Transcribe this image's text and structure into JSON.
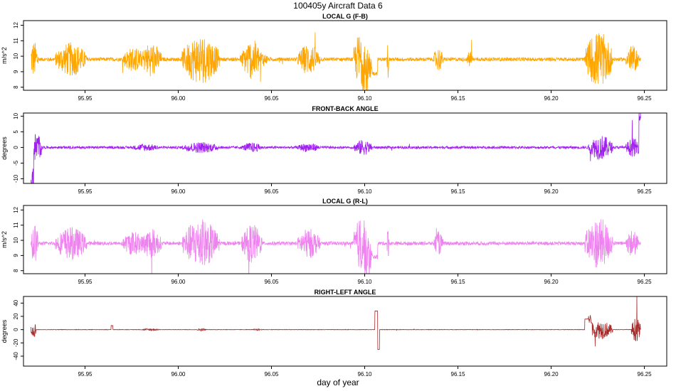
{
  "title": "100405y   Aircraft Data 6",
  "xlabel": "day of year",
  "chart_data": [
    {
      "type": "line",
      "title": "LOCAL G (F-B)",
      "ylabel": "m/s^2",
      "color": "#FFA500",
      "xlim": [
        95.917,
        96.262
      ],
      "ylim": [
        7.8,
        12.3
      ],
      "yticks": [
        8,
        9,
        10,
        11,
        12
      ],
      "xticks": [
        95.95,
        96.0,
        96.05,
        96.1,
        96.15,
        96.2,
        96.25
      ],
      "xtick_labels": [
        "95.95",
        "96.00",
        "96.05",
        "96.10",
        "96.15",
        "96.20",
        "96.25"
      ],
      "x_range": [
        95.921,
        96.248
      ],
      "baseline": 9.8,
      "noise": 0.12,
      "bursts": [
        {
          "start": 95.92,
          "end": 95.925,
          "amp": 1.2
        },
        {
          "start": 95.934,
          "end": 95.951,
          "amp": 1.1
        },
        {
          "start": 95.97,
          "end": 95.982,
          "amp": 0.8
        },
        {
          "start": 95.98,
          "end": 95.991,
          "amp": 1.1
        },
        {
          "start": 96.002,
          "end": 96.022,
          "amp": 1.6
        },
        {
          "start": 96.033,
          "end": 96.048,
          "amp": 0.7
        },
        {
          "start": 96.034,
          "end": 96.045,
          "amp": 1.3
        },
        {
          "start": 96.064,
          "end": 96.076,
          "amp": 1.0
        },
        {
          "start": 96.094,
          "end": 96.104,
          "amp": 2.0
        },
        {
          "start": 96.112,
          "end": 96.113,
          "amp": 1.3
        },
        {
          "start": 96.137,
          "end": 96.142,
          "amp": 0.8
        },
        {
          "start": 96.155,
          "end": 96.158,
          "amp": 0.6
        },
        {
          "start": 96.218,
          "end": 96.233,
          "amp": 1.8
        },
        {
          "start": 96.24,
          "end": 96.247,
          "amp": 0.9
        }
      ],
      "steps": [
        {
          "start": 96.1,
          "end": 96.107,
          "value": 8.9
        }
      ]
    },
    {
      "type": "line",
      "title": "FRONT-BACK ANGLE",
      "ylabel": "degrees",
      "color": "#A020F0",
      "xlim": [
        95.917,
        96.262
      ],
      "ylim": [
        -11.5,
        11
      ],
      "yticks": [
        -10,
        -5,
        0,
        5,
        10
      ],
      "xticks": [
        95.95,
        96.0,
        96.05,
        96.1,
        96.15,
        96.2,
        96.25
      ],
      "xtick_labels": [
        "95.95",
        "96.00",
        "96.05",
        "96.10",
        "96.15",
        "96.20",
        "96.25"
      ],
      "x_range": [
        95.921,
        96.248
      ],
      "baseline": 0,
      "noise": 0.4,
      "bursts": [
        {
          "start": 95.921,
          "end": 95.927,
          "amp": 5
        },
        {
          "start": 95.975,
          "end": 95.99,
          "amp": 1.2
        },
        {
          "start": 96.002,
          "end": 96.022,
          "amp": 1.8
        },
        {
          "start": 96.034,
          "end": 96.045,
          "amp": 1.6
        },
        {
          "start": 96.064,
          "end": 96.076,
          "amp": 1.5
        },
        {
          "start": 96.094,
          "end": 96.104,
          "amp": 2.5
        },
        {
          "start": 96.22,
          "end": 96.233,
          "amp": 4
        },
        {
          "start": 96.24,
          "end": 96.248,
          "amp": 3
        }
      ],
      "steps": [
        {
          "start": 95.921,
          "end": 95.9225,
          "value": -10
        },
        {
          "start": 96.247,
          "end": 96.248,
          "value": 10
        }
      ]
    },
    {
      "type": "line",
      "title": "LOCAL G (R-L)",
      "ylabel": "m/s^2",
      "color": "#EE82EE",
      "xlim": [
        95.917,
        96.262
      ],
      "ylim": [
        7.8,
        12.3
      ],
      "yticks": [
        8,
        9,
        10,
        11,
        12
      ],
      "xticks": [
        95.95,
        96.0,
        96.05,
        96.1,
        96.15,
        96.2,
        96.25
      ],
      "xtick_labels": [
        "95.95",
        "96.00",
        "96.05",
        "96.10",
        "96.15",
        "96.20",
        "96.25"
      ],
      "x_range": [
        95.921,
        96.248
      ],
      "baseline": 9.8,
      "noise": 0.12,
      "bursts": [
        {
          "start": 95.92,
          "end": 95.925,
          "amp": 1.4
        },
        {
          "start": 95.934,
          "end": 95.951,
          "amp": 1.1
        },
        {
          "start": 95.97,
          "end": 95.982,
          "amp": 0.8
        },
        {
          "start": 95.98,
          "end": 95.991,
          "amp": 1.0
        },
        {
          "start": 96.002,
          "end": 96.022,
          "amp": 1.6
        },
        {
          "start": 96.034,
          "end": 96.045,
          "amp": 1.3
        },
        {
          "start": 96.064,
          "end": 96.076,
          "amp": 1.0
        },
        {
          "start": 96.094,
          "end": 96.104,
          "amp": 1.9
        },
        {
          "start": 96.112,
          "end": 96.113,
          "amp": 1.2
        },
        {
          "start": 96.137,
          "end": 96.142,
          "amp": 0.8
        },
        {
          "start": 96.218,
          "end": 96.233,
          "amp": 1.7
        },
        {
          "start": 96.24,
          "end": 96.247,
          "amp": 0.9
        }
      ],
      "steps": [
        {
          "start": 96.1,
          "end": 96.107,
          "value": 8.9
        }
      ]
    },
    {
      "type": "line",
      "title": "RIGHT-LEFT ANGLE",
      "ylabel": "degrees",
      "color": "#A52A2A",
      "xlim": [
        95.917,
        96.262
      ],
      "ylim": [
        -55,
        50
      ],
      "yticks": [
        -40,
        -20,
        0,
        20,
        40
      ],
      "xticks": [
        95.95,
        96.0,
        96.05,
        96.1,
        96.15,
        96.2,
        96.25
      ],
      "xtick_labels": [
        "95.95",
        "96.00",
        "96.05",
        "96.10",
        "96.15",
        "96.20",
        "96.25"
      ],
      "x_range": [
        95.921,
        96.248
      ],
      "baseline": 0,
      "noise": 0.3,
      "bursts": [
        {
          "start": 95.921,
          "end": 95.924,
          "amp": 12
        },
        {
          "start": 95.98,
          "end": 95.99,
          "amp": 1.5
        },
        {
          "start": 96.01,
          "end": 96.015,
          "amp": 2
        },
        {
          "start": 96.04,
          "end": 96.045,
          "amp": 1.2
        },
        {
          "start": 96.22,
          "end": 96.233,
          "amp": 14
        },
        {
          "start": 96.243,
          "end": 96.248,
          "amp": 18
        }
      ],
      "steps": [
        {
          "start": 95.964,
          "end": 95.965,
          "value": 6
        },
        {
          "start": 96.1055,
          "end": 96.107,
          "value": 28
        },
        {
          "start": 96.107,
          "end": 96.108,
          "value": -30
        },
        {
          "start": 96.218,
          "end": 96.222,
          "value": 16
        }
      ]
    }
  ]
}
